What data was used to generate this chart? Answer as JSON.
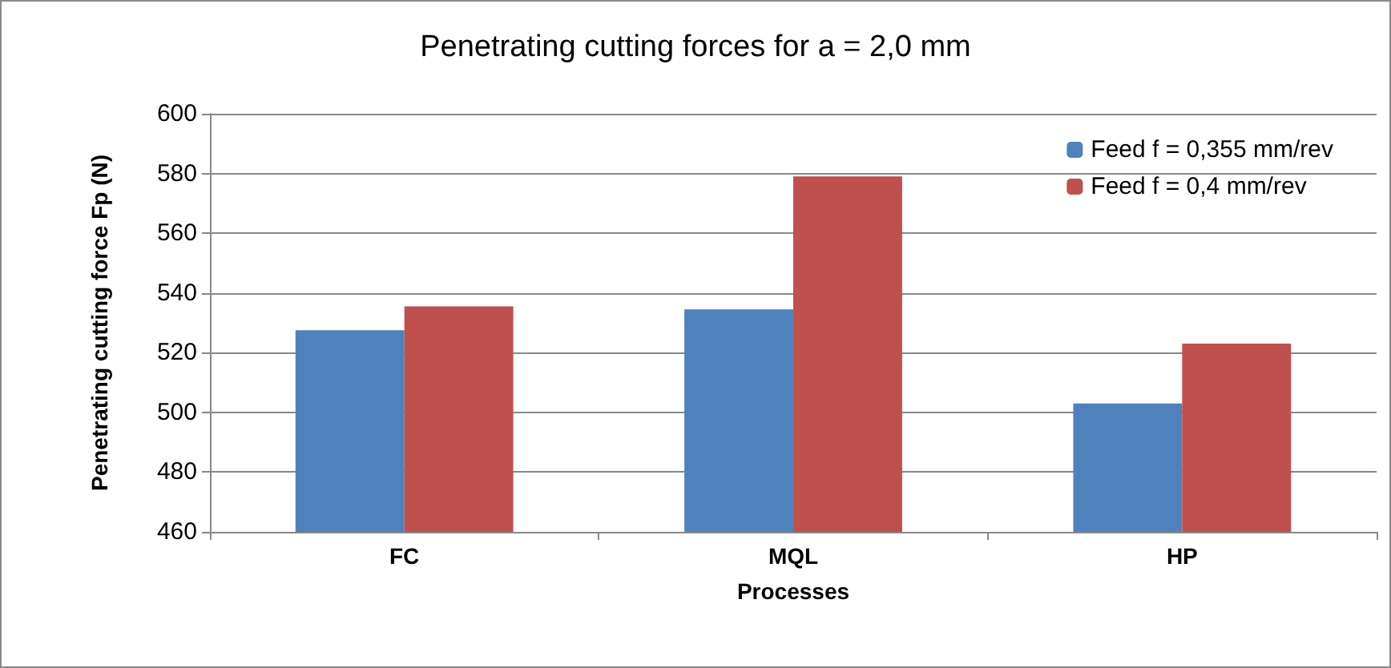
{
  "chart_data": {
    "type": "bar",
    "title": "Penetrating cutting forces for a = 2,0 mm",
    "xlabel": "Processes",
    "ylabel": "Penetrating cutting force Fp (N)",
    "categories": [
      "FC",
      "MQL",
      "HP"
    ],
    "series": [
      {
        "name": "Feed f = 0,355 mm/rev",
        "color": "#4f81bd",
        "values": [
          527.5,
          534.5,
          503
        ]
      },
      {
        "name": "Feed f = 0,4 mm/rev",
        "color": "#c0504d",
        "values": [
          535.5,
          579,
          523
        ]
      }
    ],
    "ylim": [
      460,
      600
    ],
    "yticks": [
      460,
      480,
      500,
      520,
      540,
      560,
      580,
      600
    ],
    "grid": "y",
    "legend": "top right"
  }
}
